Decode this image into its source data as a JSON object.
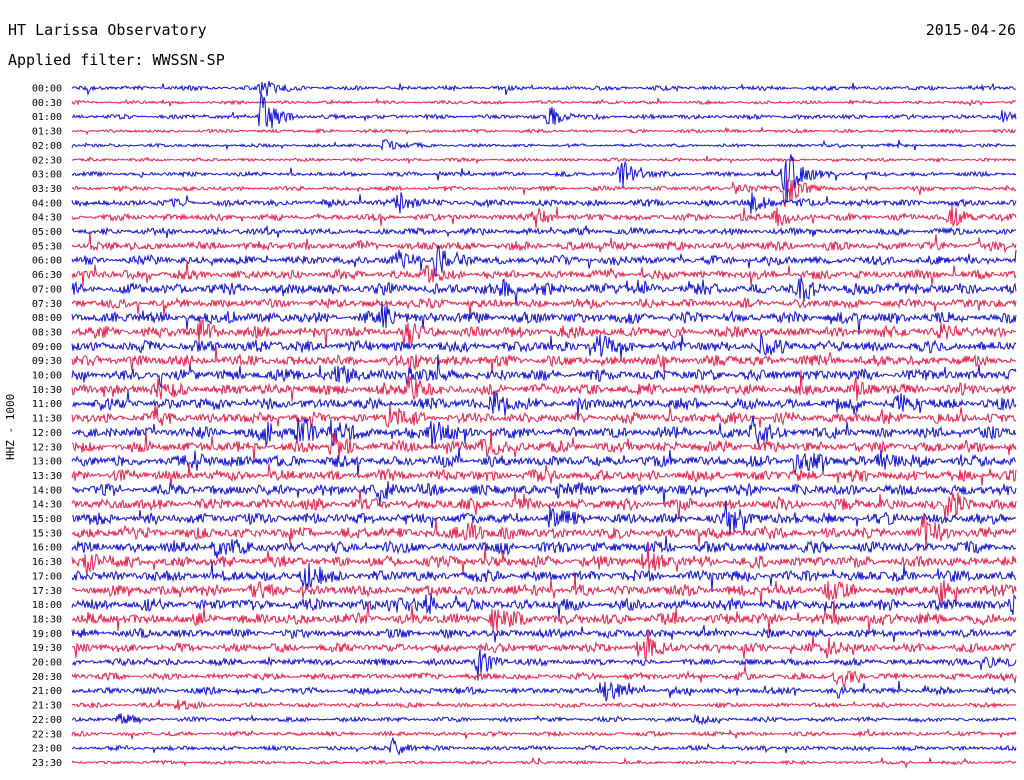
{
  "header": {
    "station": "HT Larissa Observatory",
    "date": "2015-04-26",
    "filter": "Applied filter: WWSSN-SP"
  },
  "chart_data": {
    "type": "line",
    "chart_kind": "helicorder",
    "ylabel": "HHZ - 1000",
    "colors": [
      "#1010d8",
      "#e8204a"
    ],
    "rows": [
      "00:00",
      "00:30",
      "01:00",
      "01:30",
      "02:00",
      "02:30",
      "03:00",
      "03:30",
      "04:00",
      "04:30",
      "05:00",
      "05:30",
      "06:00",
      "06:30",
      "07:00",
      "07:30",
      "08:00",
      "08:30",
      "09:00",
      "09:30",
      "10:00",
      "10:30",
      "11:00",
      "11:30",
      "12:00",
      "12:30",
      "13:00",
      "13:30",
      "14:00",
      "14:30",
      "15:00",
      "15:30",
      "16:00",
      "16:30",
      "17:00",
      "17:30",
      "18:00",
      "18:30",
      "19:00",
      "19:30",
      "20:00",
      "20:30",
      "21:00",
      "21:30",
      "22:00",
      "22:30",
      "23:00",
      "23:30"
    ],
    "noise_level": [
      2,
      1.5,
      2,
      1.5,
      1.5,
      1.5,
      2,
      2,
      3,
      3,
      3,
      4,
      4,
      4,
      5,
      4,
      5,
      5,
      5,
      5,
      5,
      5,
      5,
      5,
      5,
      5,
      5,
      5,
      5,
      5,
      5,
      5,
      5,
      5,
      5,
      5,
      5,
      5,
      4,
      4,
      3,
      3,
      3,
      2,
      2,
      2,
      2,
      1.5
    ],
    "events": [
      {
        "row": 0,
        "t": 0.2,
        "a": 12
      },
      {
        "row": 2,
        "t": 0.2,
        "a": 26
      },
      {
        "row": 2,
        "t": 0.505,
        "a": 14
      },
      {
        "row": 2,
        "t": 0.985,
        "a": 6
      },
      {
        "row": 4,
        "t": 0.33,
        "a": 7
      },
      {
        "row": 6,
        "t": 0.58,
        "a": 18
      },
      {
        "row": 6,
        "t": 0.755,
        "a": 38
      },
      {
        "row": 7,
        "t": 0.7,
        "a": 8
      },
      {
        "row": 7,
        "t": 0.755,
        "a": 22
      },
      {
        "row": 8,
        "t": 0.345,
        "a": 12
      },
      {
        "row": 8,
        "t": 0.72,
        "a": 12
      },
      {
        "row": 9,
        "t": 0.49,
        "a": 10
      },
      {
        "row": 9,
        "t": 0.745,
        "a": 14
      },
      {
        "row": 9,
        "t": 0.93,
        "a": 14
      },
      {
        "row": 12,
        "t": 0.345,
        "a": 8
      },
      {
        "row": 12,
        "t": 0.385,
        "a": 18
      },
      {
        "row": 13,
        "t": 0.375,
        "a": 10
      },
      {
        "row": 14,
        "t": 0.455,
        "a": 8
      },
      {
        "row": 14,
        "t": 0.77,
        "a": 12
      },
      {
        "row": 14,
        "t": 0.865,
        "a": 6
      },
      {
        "row": 16,
        "t": 0.165,
        "a": 6
      },
      {
        "row": 16,
        "t": 0.33,
        "a": 12
      },
      {
        "row": 17,
        "t": 0.135,
        "a": 10
      },
      {
        "row": 17,
        "t": 0.355,
        "a": 10
      },
      {
        "row": 17,
        "t": 0.92,
        "a": 8
      },
      {
        "row": 18,
        "t": 0.195,
        "a": 6
      },
      {
        "row": 18,
        "t": 0.555,
        "a": 12
      },
      {
        "row": 18,
        "t": 0.73,
        "a": 10
      },
      {
        "row": 19,
        "t": 0.355,
        "a": 10
      },
      {
        "row": 20,
        "t": 0.28,
        "a": 10
      },
      {
        "row": 20,
        "t": 0.355,
        "a": 10
      },
      {
        "row": 21,
        "t": 0.085,
        "a": 14
      },
      {
        "row": 21,
        "t": 0.355,
        "a": 16
      },
      {
        "row": 21,
        "t": 0.83,
        "a": 10
      },
      {
        "row": 22,
        "t": 0.445,
        "a": 12
      },
      {
        "row": 22,
        "t": 0.875,
        "a": 8
      },
      {
        "row": 23,
        "t": 0.085,
        "a": 8
      },
      {
        "row": 23,
        "t": 0.335,
        "a": 16
      },
      {
        "row": 24,
        "t": 0.2,
        "a": 14
      },
      {
        "row": 24,
        "t": 0.24,
        "a": 22
      },
      {
        "row": 24,
        "t": 0.275,
        "a": 12
      },
      {
        "row": 24,
        "t": 0.38,
        "a": 16
      },
      {
        "row": 24,
        "t": 0.72,
        "a": 16
      },
      {
        "row": 25,
        "t": 0.275,
        "a": 16
      },
      {
        "row": 25,
        "t": 0.435,
        "a": 14
      },
      {
        "row": 26,
        "t": 0.13,
        "a": 8
      },
      {
        "row": 26,
        "t": 0.765,
        "a": 14
      },
      {
        "row": 26,
        "t": 0.855,
        "a": 10
      },
      {
        "row": 28,
        "t": 0.325,
        "a": 14
      },
      {
        "row": 28,
        "t": 0.515,
        "a": 8
      },
      {
        "row": 29,
        "t": 0.93,
        "a": 16
      },
      {
        "row": 30,
        "t": 0.505,
        "a": 10
      },
      {
        "row": 30,
        "t": 0.695,
        "a": 14
      },
      {
        "row": 31,
        "t": 0.42,
        "a": 12
      },
      {
        "row": 31,
        "t": 0.9,
        "a": 18
      },
      {
        "row": 32,
        "t": 0.15,
        "a": 12
      },
      {
        "row": 33,
        "t": 0.015,
        "a": 14
      },
      {
        "row": 33,
        "t": 0.605,
        "a": 14
      },
      {
        "row": 34,
        "t": 0.245,
        "a": 16
      },
      {
        "row": 35,
        "t": 0.19,
        "a": 6
      },
      {
        "row": 35,
        "t": 0.8,
        "a": 8
      },
      {
        "row": 35,
        "t": 0.92,
        "a": 10
      },
      {
        "row": 36,
        "t": 0.335,
        "a": 8
      },
      {
        "row": 36,
        "t": 0.375,
        "a": 12
      },
      {
        "row": 36,
        "t": 0.995,
        "a": 10
      },
      {
        "row": 37,
        "t": 0.445,
        "a": 12
      },
      {
        "row": 39,
        "t": 0.6,
        "a": 18
      },
      {
        "row": 39,
        "t": 0.8,
        "a": 10
      },
      {
        "row": 40,
        "t": 0.43,
        "a": 16
      },
      {
        "row": 40,
        "t": 0.965,
        "a": 8
      },
      {
        "row": 41,
        "t": 0.81,
        "a": 14
      },
      {
        "row": 42,
        "t": 0.56,
        "a": 16
      },
      {
        "row": 43,
        "t": 0.11,
        "a": 6
      },
      {
        "row": 44,
        "t": 0.05,
        "a": 6
      },
      {
        "row": 44,
        "t": 0.66,
        "a": 6
      },
      {
        "row": 46,
        "t": 0.34,
        "a": 12
      }
    ]
  }
}
